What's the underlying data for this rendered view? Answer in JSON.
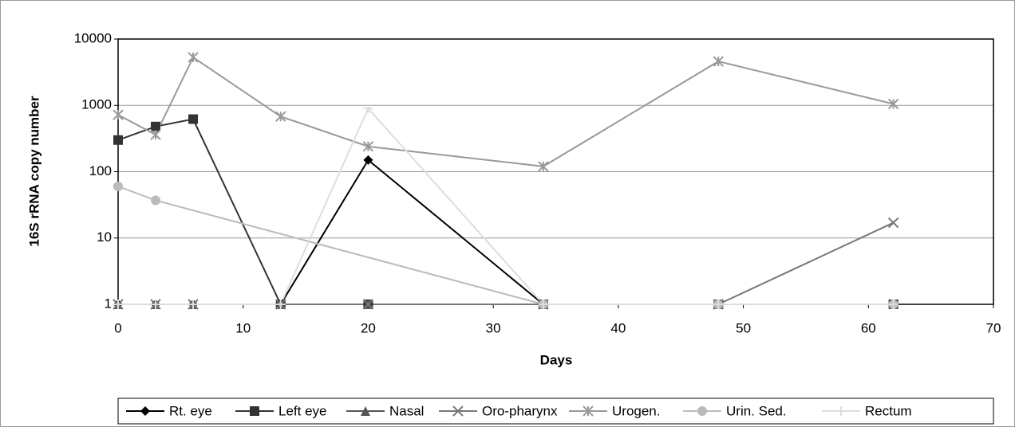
{
  "chart_data": {
    "type": "line",
    "x_label": "Days",
    "y_label": "16S rRNA copy number",
    "x": [
      0,
      3,
      6,
      13,
      20,
      34,
      48,
      62
    ],
    "xlim": [
      0,
      70
    ],
    "xticks": [
      0,
      10,
      20,
      30,
      40,
      50,
      60,
      70
    ],
    "ylim": [
      1,
      10000
    ],
    "yticks": [
      1,
      10,
      100,
      1000,
      10000
    ],
    "log_y": true,
    "grid": true,
    "legend": "bottom",
    "series": [
      {
        "name": "Rt. eye",
        "color": "#000000",
        "marker": "diamond",
        "values": [
          1,
          1,
          1,
          1,
          150,
          1,
          1,
          1
        ]
      },
      {
        "name": "Left eye",
        "color": "#333333",
        "marker": "square",
        "values": [
          300,
          480,
          620,
          1,
          1,
          1,
          1,
          1
        ]
      },
      {
        "name": "Nasal",
        "color": "#555555",
        "marker": "triangle",
        "values": [
          1,
          1,
          1,
          1,
          1,
          1,
          1,
          1
        ]
      },
      {
        "name": "Oro-pharynx",
        "color": "#777777",
        "marker": "x",
        "values": [
          1,
          1,
          1,
          1,
          1,
          1,
          1,
          17
        ]
      },
      {
        "name": "Urogen.",
        "color": "#999999",
        "marker": "asterisk",
        "values": [
          720,
          360,
          5300,
          680,
          240,
          120,
          4600,
          1050
        ]
      },
      {
        "name": "Urin. Sed.",
        "color": "#bbbbbb",
        "marker": "circle",
        "x": [
          0,
          3,
          34,
          48,
          62
        ],
        "values": [
          60,
          37,
          1,
          1,
          1
        ]
      },
      {
        "name": "Rectum",
        "color": "#dddddd",
        "marker": "plus",
        "values": [
          1,
          1,
          1,
          1,
          900,
          1,
          1,
          1
        ]
      }
    ]
  }
}
